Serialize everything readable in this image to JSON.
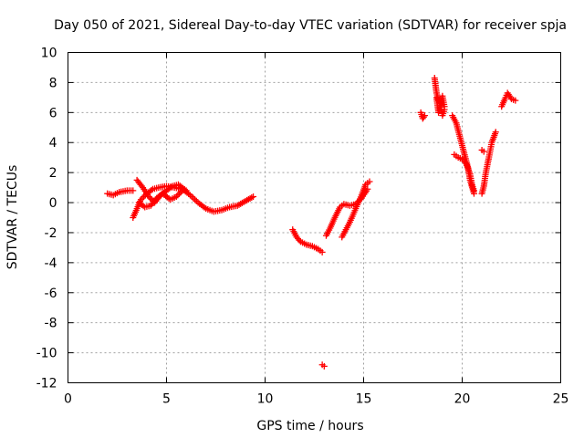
{
  "chart_data": {
    "type": "scatter",
    "title": "Day 050 of 2021, Sidereal Day-to-day VTEC variation (SDTVAR) for receiver spja",
    "xlabel": "GPS time / hours",
    "ylabel": "SDTVAR / TECUs",
    "xlim": [
      0,
      25
    ],
    "ylim": [
      -12,
      10
    ],
    "xticks": [
      "0",
      "5",
      "10",
      "15",
      "20",
      "25"
    ],
    "yticks": [
      "-12",
      "-10",
      "-8",
      "-6",
      "-4",
      "-2",
      "0",
      "2",
      "4",
      "6",
      "8",
      "10"
    ],
    "grid": true,
    "marker": "+",
    "marker_color": "#ff0000",
    "series": [
      {
        "name": "",
        "segments": [
          [
            [
              2.0,
              0.6
            ],
            [
              2.3,
              0.5
            ],
            [
              2.6,
              0.7
            ],
            [
              3.0,
              0.8
            ],
            [
              3.3,
              0.8
            ]
          ],
          [
            [
              3.3,
              -1.0
            ],
            [
              3.5,
              -0.4
            ],
            [
              3.7,
              0.2
            ],
            [
              4.0,
              0.6
            ],
            [
              4.3,
              0.9
            ],
            [
              4.6,
              1.0
            ],
            [
              5.0,
              1.1
            ],
            [
              5.4,
              1.0
            ],
            [
              5.8,
              0.9
            ],
            [
              6.2,
              0.5
            ],
            [
              6.6,
              0.0
            ],
            [
              7.0,
              -0.4
            ],
            [
              7.4,
              -0.6
            ],
            [
              7.8,
              -0.5
            ],
            [
              8.2,
              -0.3
            ],
            [
              8.6,
              -0.2
            ],
            [
              9.0,
              0.1
            ],
            [
              9.4,
              0.4
            ]
          ],
          [
            [
              3.5,
              1.5
            ],
            [
              3.8,
              1.0
            ],
            [
              4.1,
              0.4
            ],
            [
              4.4,
              0.0
            ],
            [
              4.7,
              0.5
            ],
            [
              5.0,
              0.8
            ],
            [
              5.3,
              1.1
            ],
            [
              5.6,
              1.2
            ],
            [
              6.0,
              0.8
            ]
          ],
          [
            [
              3.6,
              0.0
            ],
            [
              3.9,
              -0.3
            ],
            [
              4.2,
              -0.2
            ],
            [
              4.5,
              0.3
            ],
            [
              4.8,
              0.6
            ],
            [
              5.2,
              0.2
            ],
            [
              5.5,
              0.4
            ],
            [
              5.8,
              0.8
            ]
          ],
          [
            [
              11.4,
              -1.8
            ],
            [
              11.6,
              -2.3
            ],
            [
              11.8,
              -2.6
            ],
            [
              12.1,
              -2.8
            ],
            [
              12.4,
              -2.9
            ],
            [
              12.7,
              -3.1
            ],
            [
              12.9,
              -3.3
            ]
          ],
          [
            [
              12.9,
              -10.8
            ],
            [
              13.0,
              -10.9
            ]
          ],
          [
            [
              13.1,
              -2.2
            ],
            [
              13.3,
              -1.7
            ],
            [
              13.5,
              -1.1
            ],
            [
              13.8,
              -0.3
            ],
            [
              14.0,
              -0.1
            ],
            [
              14.3,
              -0.2
            ],
            [
              14.6,
              -0.1
            ],
            [
              14.9,
              0.3
            ],
            [
              15.2,
              0.9
            ]
          ],
          [
            [
              13.9,
              -2.3
            ],
            [
              14.1,
              -1.8
            ],
            [
              14.3,
              -1.3
            ],
            [
              14.6,
              -0.4
            ],
            [
              14.9,
              0.5
            ],
            [
              15.1,
              1.2
            ],
            [
              15.3,
              1.4
            ]
          ],
          [
            [
              17.9,
              6.0
            ],
            [
              18.0,
              5.6
            ],
            [
              18.1,
              5.8
            ]
          ],
          [
            [
              18.6,
              8.3
            ],
            [
              18.7,
              7.3
            ],
            [
              18.8,
              6.8
            ],
            [
              18.9,
              6.5
            ],
            [
              19.0,
              5.8
            ],
            [
              19.1,
              6.2
            ]
          ],
          [
            [
              18.7,
              7.0
            ],
            [
              18.8,
              6.0
            ],
            [
              18.9,
              6.6
            ],
            [
              19.0,
              7.1
            ],
            [
              19.1,
              6.4
            ]
          ],
          [
            [
              19.5,
              5.8
            ],
            [
              19.7,
              5.3
            ],
            [
              19.9,
              4.3
            ],
            [
              20.1,
              3.3
            ],
            [
              20.3,
              2.3
            ],
            [
              20.4,
              1.5
            ],
            [
              20.6,
              0.6
            ]
          ],
          [
            [
              19.6,
              3.2
            ],
            [
              19.8,
              3.0
            ],
            [
              20.0,
              2.9
            ],
            [
              20.2,
              2.6
            ],
            [
              20.4,
              1.9
            ],
            [
              20.5,
              1.2
            ],
            [
              20.6,
              0.8
            ]
          ],
          [
            [
              21.0,
              0.6
            ],
            [
              21.1,
              1.1
            ],
            [
              21.2,
              2.0
            ],
            [
              21.4,
              3.3
            ],
            [
              21.5,
              4.0
            ],
            [
              21.7,
              4.7
            ]
          ],
          [
            [
              21.0,
              3.5
            ],
            [
              21.1,
              3.4
            ]
          ],
          [
            [
              22.0,
              6.4
            ],
            [
              22.2,
              7.0
            ],
            [
              22.3,
              7.3
            ],
            [
              22.5,
              6.9
            ],
            [
              22.7,
              6.8
            ]
          ]
        ]
      }
    ]
  }
}
